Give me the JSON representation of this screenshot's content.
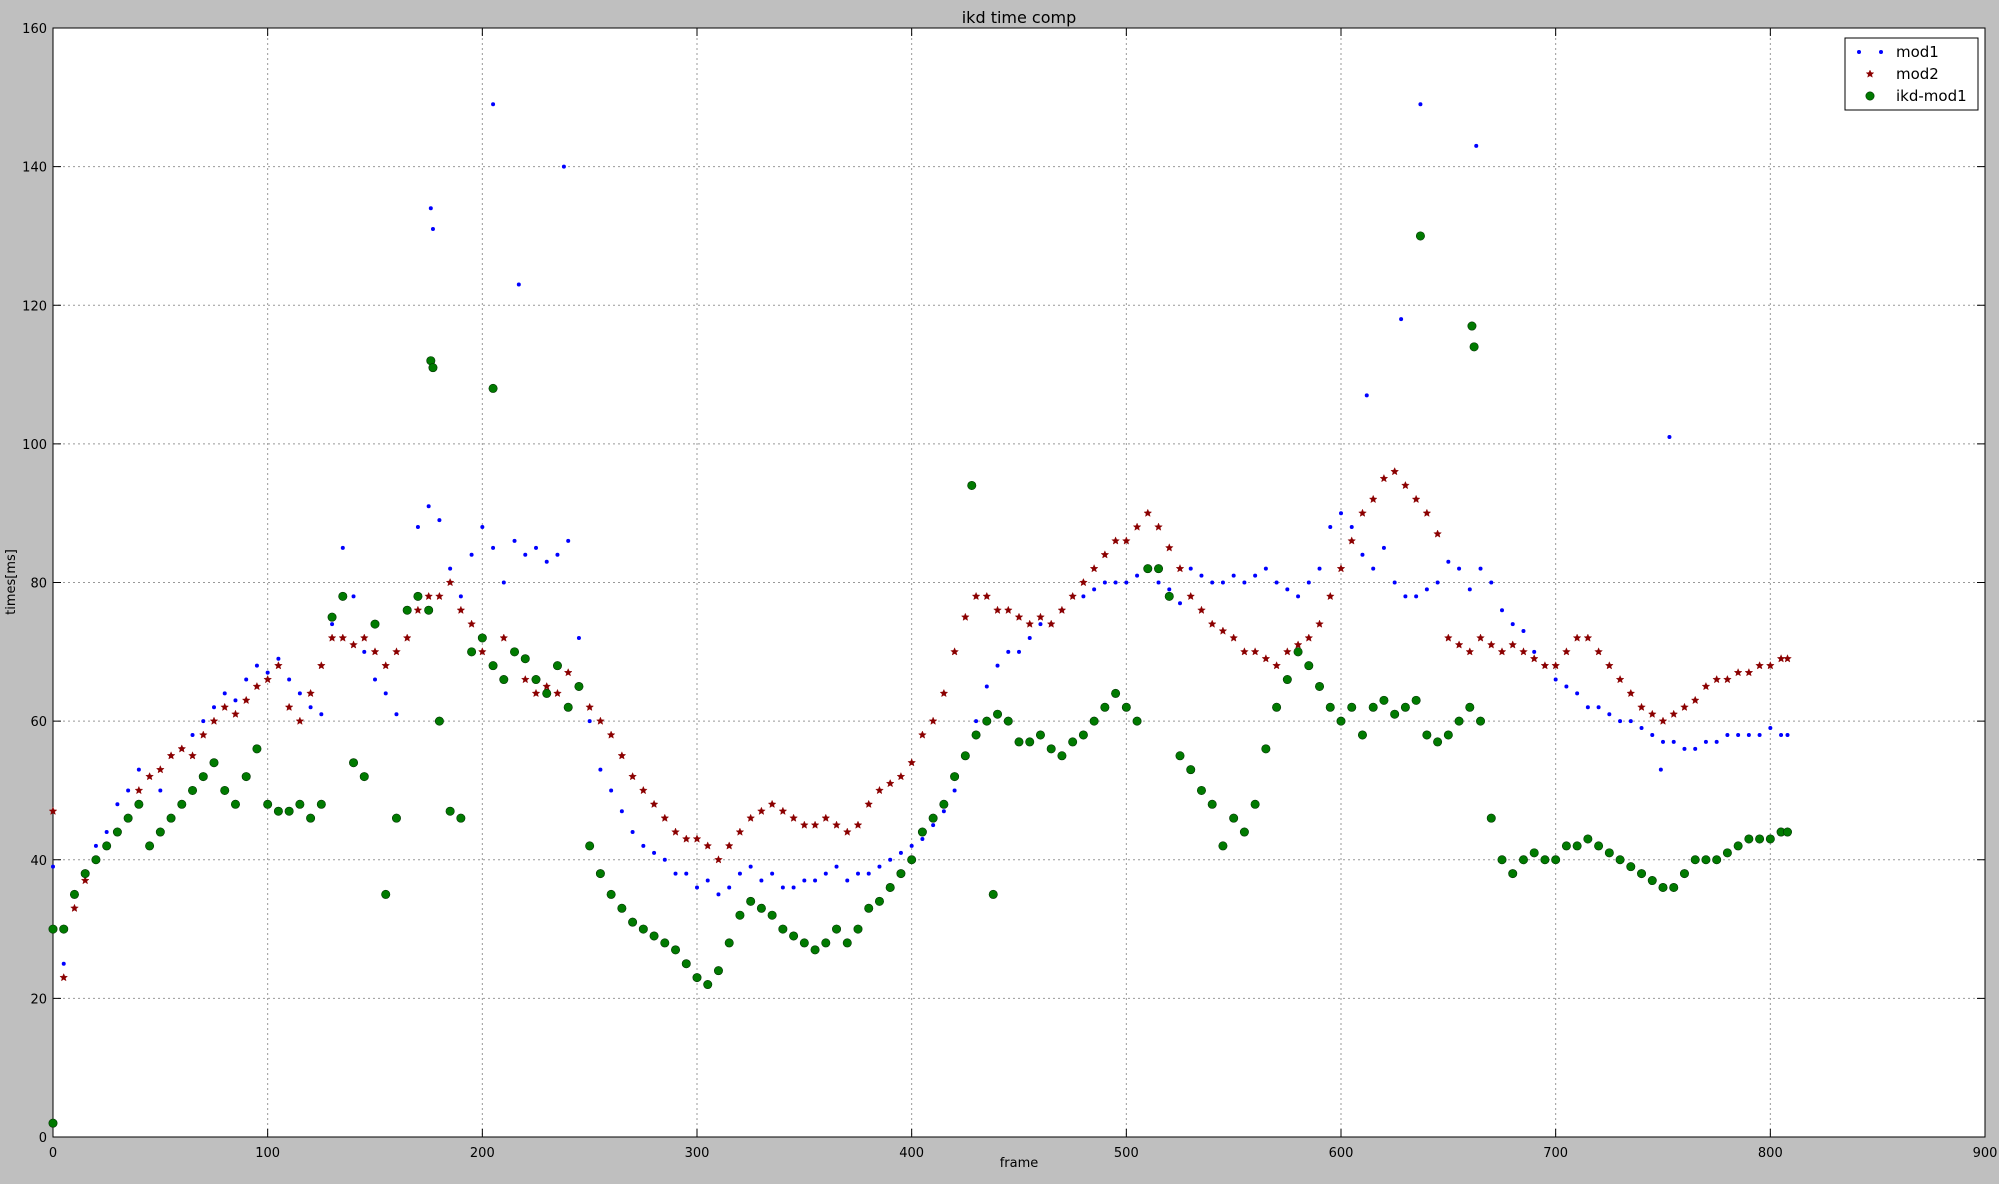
{
  "window": {
    "background": "#bfbfbf"
  },
  "chart_data": {
    "type": "scatter",
    "title": "ikd time comp",
    "xlabel": "frame",
    "ylabel": "times[ms]",
    "xlim": [
      0,
      900
    ],
    "ylim": [
      0,
      160
    ],
    "x_ticks": [
      0,
      100,
      200,
      300,
      400,
      500,
      600,
      700,
      800,
      900
    ],
    "y_ticks": [
      0,
      20,
      40,
      60,
      80,
      100,
      120,
      140,
      160
    ],
    "grid": true,
    "legend_position": "top-right",
    "series": [
      {
        "name": "mod1",
        "color": "#0000ff",
        "marker": "point",
        "x": [
          0,
          5,
          10,
          15,
          20,
          25,
          30,
          35,
          40,
          45,
          50,
          55,
          60,
          65,
          70,
          75,
          80,
          85,
          90,
          95,
          100,
          105,
          110,
          115,
          120,
          125,
          130,
          135,
          140,
          145,
          150,
          155,
          160,
          165,
          170,
          175,
          180,
          185,
          190,
          195,
          200,
          205,
          210,
          215,
          220,
          225,
          230,
          235,
          240,
          245,
          250,
          255,
          260,
          265,
          270,
          275,
          280,
          285,
          290,
          295,
          300,
          305,
          310,
          315,
          320,
          325,
          330,
          335,
          340,
          345,
          350,
          355,
          360,
          365,
          370,
          375,
          380,
          385,
          390,
          395,
          400,
          405,
          410,
          415,
          420,
          425,
          430,
          435,
          440,
          445,
          450,
          455,
          460,
          465,
          470,
          475,
          480,
          485,
          490,
          495,
          500,
          505,
          510,
          515,
          520,
          525,
          530,
          535,
          540,
          545,
          550,
          555,
          560,
          565,
          570,
          575,
          580,
          585,
          590,
          595,
          600,
          605,
          610,
          615,
          620,
          625,
          630,
          635,
          640,
          645,
          650,
          655,
          660,
          665,
          670,
          675,
          680,
          685,
          690,
          695,
          700,
          705,
          710,
          715,
          720,
          725,
          730,
          735,
          740,
          745,
          750,
          755,
          760,
          765,
          770,
          775,
          780,
          785,
          790,
          795,
          800,
          805,
          808,
          176,
          177,
          205,
          238,
          663,
          637,
          628,
          217,
          612,
          749,
          753
        ],
        "y": [
          39,
          25,
          33,
          38,
          42,
          44,
          48,
          50,
          53,
          52,
          50,
          55,
          56,
          58,
          60,
          62,
          64,
          63,
          66,
          68,
          67,
          69,
          66,
          64,
          62,
          61,
          74,
          85,
          78,
          70,
          66,
          64,
          61,
          76,
          88,
          91,
          89,
          82,
          78,
          84,
          88,
          85,
          80,
          86,
          84,
          85,
          83,
          84,
          86,
          72,
          60,
          53,
          50,
          47,
          44,
          42,
          41,
          40,
          38,
          38,
          36,
          37,
          35,
          36,
          38,
          39,
          37,
          38,
          36,
          36,
          37,
          37,
          38,
          39,
          37,
          38,
          38,
          39,
          40,
          41,
          42,
          43,
          45,
          47,
          50,
          55,
          60,
          65,
          68,
          70,
          70,
          72,
          74,
          74,
          76,
          78,
          78,
          79,
          80,
          80,
          80,
          81,
          82,
          80,
          79,
          77,
          82,
          81,
          80,
          80,
          81,
          80,
          81,
          82,
          80,
          79,
          78,
          80,
          82,
          88,
          90,
          88,
          84,
          82,
          85,
          80,
          78,
          78,
          79,
          80,
          83,
          82,
          79,
          82,
          80,
          76,
          74,
          73,
          70,
          68,
          66,
          65,
          64,
          62,
          62,
          61,
          60,
          60,
          59,
          58,
          57,
          57,
          56,
          56,
          57,
          57,
          58,
          58,
          58,
          58,
          59,
          58,
          58,
          134,
          131,
          149,
          140,
          143,
          149,
          118,
          123,
          107,
          53,
          101
        ]
      },
      {
        "name": "mod2",
        "color": "#8b0000",
        "marker": "star",
        "x": [
          0,
          5,
          10,
          15,
          20,
          25,
          30,
          35,
          40,
          45,
          50,
          55,
          60,
          65,
          70,
          75,
          80,
          85,
          90,
          95,
          100,
          105,
          110,
          115,
          120,
          125,
          130,
          135,
          140,
          145,
          150,
          155,
          160,
          165,
          170,
          175,
          180,
          185,
          190,
          195,
          200,
          205,
          210,
          215,
          220,
          225,
          230,
          235,
          240,
          245,
          250,
          255,
          260,
          265,
          270,
          275,
          280,
          285,
          290,
          295,
          300,
          305,
          310,
          315,
          320,
          325,
          330,
          335,
          340,
          345,
          350,
          355,
          360,
          365,
          370,
          375,
          380,
          385,
          390,
          395,
          400,
          405,
          410,
          415,
          420,
          425,
          430,
          435,
          440,
          445,
          450,
          455,
          460,
          465,
          470,
          475,
          480,
          485,
          490,
          495,
          500,
          505,
          510,
          515,
          520,
          525,
          530,
          535,
          540,
          545,
          550,
          555,
          560,
          565,
          570,
          575,
          580,
          585,
          590,
          595,
          600,
          605,
          610,
          615,
          620,
          625,
          630,
          635,
          640,
          645,
          650,
          655,
          660,
          665,
          670,
          675,
          680,
          685,
          690,
          695,
          700,
          705,
          710,
          715,
          720,
          725,
          730,
          735,
          740,
          745,
          750,
          755,
          760,
          765,
          770,
          775,
          780,
          785,
          790,
          795,
          800,
          805,
          808
        ],
        "y": [
          47,
          23,
          33,
          37,
          40,
          42,
          44,
          46,
          50,
          52,
          53,
          55,
          56,
          55,
          58,
          60,
          62,
          61,
          63,
          65,
          66,
          68,
          62,
          60,
          64,
          68,
          72,
          72,
          71,
          72,
          70,
          68,
          70,
          72,
          76,
          78,
          78,
          80,
          76,
          74,
          70,
          68,
          72,
          70,
          66,
          64,
          65,
          64,
          67,
          65,
          62,
          60,
          58,
          55,
          52,
          50,
          48,
          46,
          44,
          43,
          43,
          42,
          40,
          42,
          44,
          46,
          47,
          48,
          47,
          46,
          45,
          45,
          46,
          45,
          44,
          45,
          48,
          50,
          51,
          52,
          54,
          58,
          60,
          64,
          70,
          75,
          78,
          78,
          76,
          76,
          75,
          74,
          75,
          74,
          76,
          78,
          80,
          82,
          84,
          86,
          86,
          88,
          90,
          88,
          85,
          82,
          78,
          76,
          74,
          73,
          72,
          70,
          70,
          69,
          68,
          70,
          71,
          72,
          74,
          78,
          82,
          86,
          90,
          92,
          95,
          96,
          94,
          92,
          90,
          87,
          72,
          71,
          70,
          72,
          71,
          70,
          71,
          70,
          69,
          68,
          68,
          70,
          72,
          72,
          70,
          68,
          66,
          64,
          62,
          61,
          60,
          61,
          62,
          63,
          65,
          66,
          66,
          67,
          67,
          68,
          68,
          69,
          69
        ]
      },
      {
        "name": "ikd-mod1",
        "color": "#007a00",
        "marker": "circle",
        "x": [
          0,
          5,
          10,
          15,
          20,
          25,
          30,
          35,
          40,
          45,
          50,
          55,
          60,
          65,
          70,
          75,
          80,
          85,
          90,
          95,
          100,
          105,
          110,
          115,
          120,
          125,
          130,
          135,
          140,
          145,
          150,
          155,
          160,
          165,
          170,
          175,
          180,
          185,
          190,
          195,
          200,
          205,
          210,
          215,
          220,
          225,
          230,
          235,
          240,
          245,
          250,
          255,
          260,
          265,
          270,
          275,
          280,
          285,
          290,
          295,
          300,
          305,
          310,
          315,
          320,
          325,
          330,
          335,
          340,
          345,
          350,
          355,
          360,
          365,
          370,
          375,
          380,
          385,
          390,
          395,
          400,
          405,
          410,
          415,
          420,
          425,
          430,
          435,
          440,
          445,
          450,
          455,
          460,
          465,
          470,
          475,
          480,
          485,
          490,
          495,
          500,
          505,
          510,
          515,
          520,
          525,
          530,
          535,
          540,
          545,
          550,
          555,
          560,
          565,
          570,
          575,
          580,
          585,
          590,
          595,
          600,
          605,
          610,
          615,
          620,
          625,
          630,
          635,
          640,
          645,
          650,
          655,
          660,
          665,
          670,
          675,
          680,
          685,
          690,
          695,
          700,
          705,
          710,
          715,
          720,
          725,
          730,
          735,
          740,
          745,
          750,
          755,
          760,
          765,
          770,
          775,
          780,
          785,
          790,
          795,
          800,
          805,
          808,
          0,
          176,
          177,
          205,
          637,
          661,
          662,
          428,
          438
        ],
        "y": [
          30,
          30,
          35,
          38,
          40,
          42,
          44,
          46,
          48,
          42,
          44,
          46,
          48,
          50,
          52,
          54,
          50,
          48,
          52,
          56,
          48,
          47,
          47,
          48,
          46,
          48,
          75,
          78,
          54,
          52,
          74,
          35,
          46,
          76,
          78,
          76,
          60,
          47,
          46,
          70,
          72,
          68,
          66,
          70,
          69,
          66,
          64,
          68,
          62,
          65,
          42,
          38,
          35,
          33,
          31,
          30,
          29,
          28,
          27,
          25,
          23,
          22,
          24,
          28,
          32,
          34,
          33,
          32,
          30,
          29,
          28,
          27,
          28,
          30,
          28,
          30,
          33,
          34,
          36,
          38,
          40,
          44,
          46,
          48,
          52,
          55,
          58,
          60,
          61,
          60,
          57,
          57,
          58,
          56,
          55,
          57,
          58,
          60,
          62,
          64,
          62,
          60,
          82,
          82,
          78,
          55,
          53,
          50,
          48,
          42,
          46,
          44,
          48,
          56,
          62,
          66,
          70,
          68,
          65,
          62,
          60,
          62,
          58,
          62,
          63,
          61,
          62,
          63,
          58,
          57,
          58,
          60,
          62,
          60,
          46,
          40,
          38,
          40,
          41,
          40,
          40,
          42,
          42,
          43,
          42,
          41,
          40,
          39,
          38,
          37,
          36,
          36,
          38,
          40,
          40,
          40,
          41,
          42,
          43,
          43,
          43,
          44,
          44,
          2,
          112,
          111,
          108,
          130,
          117,
          114,
          94,
          35
        ]
      }
    ]
  }
}
